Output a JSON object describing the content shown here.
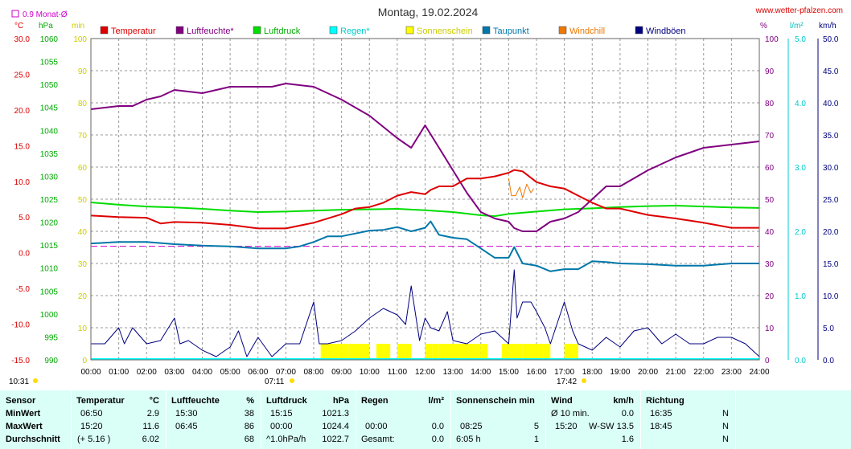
{
  "header": {
    "title": "Montag, 19.02.2024",
    "site": "www.wetter-pfalzen.com",
    "avg_label": "0.9 Monat-Ø",
    "time_start": "10:31",
    "sunrise_time": "07:11",
    "sunset_time": "17:42"
  },
  "units": {
    "temp": "°C",
    "pressure": "hPa",
    "sun": "min",
    "humidity": "%",
    "rain": "l/m²",
    "wind": "km/h"
  },
  "colors": {
    "temperature": "#dd0000",
    "humidity": "#800080",
    "pressure": "#00dd00",
    "rain": "#00dddd",
    "sunshine": "#ffff00",
    "dewpoint": "#0077aa",
    "windchill": "#ee7700",
    "gusts": "#000080",
    "summary_bg": "#d9fff7"
  },
  "legend": [
    {
      "label": "Temperatur",
      "color": "#dd0000",
      "text_color": "#dd0000"
    },
    {
      "label": "Luftfeuchte*",
      "color": "#800080",
      "text_color": "#800080"
    },
    {
      "label": "Luftdruck",
      "color": "#00dd00",
      "text_color": "#00aa00"
    },
    {
      "label": "Regen*",
      "color": "#00ffff",
      "text_color": "#00cccc"
    },
    {
      "label": "Sonnenschein",
      "color": "#ffff00",
      "text_color": "#cccc00"
    },
    {
      "label": "Taupunkt",
      "color": "#0077aa",
      "text_color": "#0077aa"
    },
    {
      "label": "Windchill",
      "color": "#ee7700",
      "text_color": "#ee7700"
    },
    {
      "label": "Windböen",
      "color": "#000080",
      "text_color": "#000080"
    }
  ],
  "axes": {
    "temp_ticks": [
      "30.0",
      "25.0",
      "20.0",
      "15.0",
      "10.0",
      "5.0",
      "0.0",
      "-5.0",
      "-10.0",
      "-15.0"
    ],
    "pressure_ticks": [
      "1060",
      "1055",
      "1050",
      "1045",
      "1040",
      "1035",
      "1030",
      "1025",
      "1020",
      "1015",
      "1010",
      "1005",
      "1000",
      "995",
      "990"
    ],
    "sun_ticks": [
      "100",
      "90",
      "80",
      "70",
      "60",
      "50",
      "40",
      "30",
      "20",
      "10",
      "0"
    ],
    "humidity_ticks": [
      "100",
      "90",
      "80",
      "70",
      "60",
      "50",
      "40",
      "30",
      "20",
      "10",
      "0"
    ],
    "rain_ticks": [
      "5.0",
      "4.0",
      "3.0",
      "2.0",
      "1.0",
      "0.0"
    ],
    "wind_ticks": [
      "50.0",
      "45.0",
      "40.0",
      "35.0",
      "30.0",
      "25.0",
      "20.0",
      "15.0",
      "10.0",
      "5.0",
      "0.0"
    ],
    "time_ticks": [
      "00:00",
      "01:00",
      "02:00",
      "03:00",
      "04:00",
      "05:00",
      "06:00",
      "07:00",
      "08:00",
      "09:00",
      "10:00",
      "11:00",
      "12:00",
      "13:00",
      "14:00",
      "15:00",
      "16:00",
      "17:00",
      "18:00",
      "19:00",
      "20:00",
      "21:00",
      "22:00",
      "23:00",
      "24:00"
    ]
  },
  "chart_data": {
    "type": "line",
    "title": "Montag, 19.02.2024",
    "x_unit": "hours",
    "xlim": [
      0,
      24
    ],
    "temp_ylim": [
      -15,
      30
    ],
    "humidity_ylim": [
      0,
      100
    ],
    "pressure_ylim": [
      990,
      1060
    ],
    "wind_ylim": [
      0,
      50
    ],
    "rain_ylim": [
      0,
      5
    ],
    "sun_ylim": [
      0,
      100
    ],
    "grid": true,
    "monthly_avg_temp": 0.9,
    "series": [
      {
        "name": "Temperatur",
        "axis": "temp",
        "x": [
          0,
          1,
          2,
          2.5,
          3,
          4,
          5,
          6,
          7,
          8,
          9,
          9.5,
          10,
          10.5,
          11,
          11.5,
          12,
          12.2,
          12.5,
          13,
          13.5,
          14,
          14.5,
          15,
          15.2,
          15.5,
          16,
          16.5,
          17,
          17.5,
          18,
          18.5,
          19,
          20,
          21,
          22,
          23,
          24
        ],
        "y": [
          5.2,
          5.0,
          4.9,
          4.1,
          4.3,
          4.2,
          3.9,
          3.4,
          3.4,
          4.2,
          5.4,
          6.2,
          6.4,
          7.0,
          8.0,
          8.5,
          8.2,
          8.8,
          9.3,
          9.3,
          10.4,
          10.4,
          10.7,
          11.2,
          11.6,
          11.4,
          9.9,
          9.3,
          9.0,
          8.0,
          7.0,
          6.2,
          6.2,
          5.3,
          4.8,
          4.2,
          3.5,
          3.5
        ]
      },
      {
        "name": "Luftfeuchte*",
        "axis": "humidity",
        "x": [
          0,
          1,
          1.5,
          2,
          2.5,
          3,
          4,
          5,
          6,
          6.5,
          7,
          8,
          8.5,
          9,
          10,
          11,
          11.5,
          12,
          12.5,
          13,
          13.5,
          14,
          14.5,
          15,
          15.2,
          15.5,
          16,
          16.5,
          17,
          17.5,
          18,
          18.5,
          19,
          20,
          21,
          22,
          23,
          24
        ],
        "y": [
          78,
          79,
          79,
          81,
          82,
          84,
          83,
          85,
          85,
          85,
          86,
          85,
          83,
          81,
          76,
          69,
          66,
          73,
          66,
          59,
          52,
          46,
          44,
          43,
          41,
          40,
          40,
          43,
          44,
          46,
          50,
          54,
          54,
          59,
          63,
          66,
          67,
          68
        ]
      },
      {
        "name": "Luftdruck",
        "axis": "pressure",
        "x": [
          0,
          1,
          2,
          3,
          4,
          5,
          6,
          7,
          8,
          9,
          10,
          11,
          12,
          13,
          14,
          14.5,
          15,
          16,
          17,
          18,
          19,
          20,
          21,
          22,
          23,
          24
        ],
        "y": [
          1024.3,
          1023.8,
          1023.4,
          1023.2,
          1022.9,
          1022.5,
          1022.2,
          1022.3,
          1022.5,
          1022.7,
          1022.8,
          1022.9,
          1022.6,
          1022.2,
          1021.5,
          1021.3,
          1021.8,
          1022.3,
          1022.8,
          1023.0,
          1023.3,
          1023.5,
          1023.6,
          1023.4,
          1023.2,
          1023.1
        ]
      },
      {
        "name": "Taupunkt",
        "axis": "temp",
        "x": [
          0,
          1,
          2,
          3,
          4,
          5,
          6,
          7,
          7.5,
          8,
          8.5,
          9,
          9.5,
          10,
          10.5,
          11,
          11.5,
          12,
          12.2,
          12.5,
          13,
          13.5,
          14,
          14.5,
          15,
          15.2,
          15.5,
          16,
          16.5,
          17,
          17.5,
          18,
          18.5,
          19,
          20,
          21,
          22,
          23,
          24
        ],
        "y": [
          1.3,
          1.5,
          1.5,
          1.2,
          1.0,
          0.9,
          0.6,
          0.6,
          0.9,
          1.5,
          2.3,
          2.3,
          2.7,
          3.1,
          3.2,
          3.6,
          3.0,
          3.5,
          4.4,
          2.5,
          2.1,
          1.9,
          0.6,
          -0.7,
          -0.7,
          0.8,
          -1.5,
          -1.8,
          -2.6,
          -2.3,
          -2.3,
          -1.2,
          -1.3,
          -1.5,
          -1.6,
          -1.8,
          -1.8,
          -1.5,
          -1.5
        ]
      },
      {
        "name": "Windchill",
        "axis": "temp",
        "x": [
          15.0,
          15.1,
          15.25,
          15.4,
          15.5,
          15.65,
          15.8,
          15.9
        ],
        "y": [
          10.4,
          8.0,
          8.0,
          9.2,
          7.7,
          9.6,
          8.4,
          9.0
        ]
      },
      {
        "name": "Windböen",
        "axis": "wind",
        "x": [
          0,
          0.5,
          1,
          1.2,
          1.5,
          2,
          2.5,
          3,
          3.2,
          3.5,
          4,
          4.5,
          5,
          5.3,
          5.6,
          6,
          6.5,
          7,
          7.5,
          8,
          8.2,
          8.5,
          9,
          9.5,
          10,
          10.5,
          11,
          11.3,
          11.5,
          11.8,
          12,
          12.2,
          12.5,
          12.8,
          13,
          13.5,
          14,
          14.5,
          15,
          15.2,
          15.3,
          15.5,
          15.8,
          16,
          16.3,
          16.5,
          17,
          17.3,
          17.5,
          18,
          18.5,
          19,
          19.5,
          20,
          20.5,
          21,
          21.5,
          22,
          22.5,
          23,
          23.5,
          24
        ],
        "y": [
          2.5,
          2.5,
          5.0,
          2.5,
          5.0,
          2.5,
          3.0,
          6.5,
          2.5,
          3.0,
          1.5,
          0.5,
          2.0,
          4.5,
          0.5,
          3.5,
          0.5,
          2.5,
          2.5,
          9.0,
          2.5,
          2.5,
          3.0,
          4.5,
          6.5,
          8.0,
          7.0,
          5.5,
          11.5,
          3.0,
          6.5,
          5.0,
          4.5,
          7.5,
          3.0,
          2.5,
          4.0,
          4.5,
          2.5,
          14.0,
          6.5,
          9.0,
          9.0,
          7.5,
          5.0,
          2.5,
          9.0,
          4.5,
          2.5,
          1.5,
          3.5,
          2.0,
          4.5,
          5.0,
          2.5,
          4.0,
          2.5,
          2.5,
          3.5,
          3.5,
          2.5,
          0.5
        ]
      },
      {
        "name": "Sonnenschein",
        "axis": "sun",
        "type": "bar",
        "x": [
          8.25,
          8.5,
          8.75,
          9.0,
          9.25,
          9.5,
          9.75,
          10.0,
          10.25,
          10.5,
          10.75,
          11.0,
          11.25,
          11.5,
          12.0,
          12.25,
          12.5,
          12.75,
          13.0,
          13.25,
          13.5,
          13.75,
          14.0,
          14.25,
          14.5,
          14.75,
          15.0,
          15.25,
          15.5,
          15.75,
          16.0,
          16.25,
          16.5,
          16.75,
          17.0,
          17.25,
          17.5
        ],
        "y": [
          5,
          5,
          5,
          5,
          5,
          5,
          5,
          0,
          5,
          5,
          0,
          5,
          5,
          0,
          5,
          5,
          5,
          5,
          5,
          5,
          5,
          5,
          5,
          0,
          0,
          5,
          5,
          5,
          5,
          5,
          5,
          5,
          0,
          0,
          5,
          5,
          0
        ]
      }
    ]
  },
  "summary": {
    "sensor": {
      "header": "Sensor",
      "rows": [
        "MinWert",
        "MaxWert",
        "Durchschnitt"
      ]
    },
    "temperature": {
      "header": "Temperatur",
      "unit": "°C",
      "rows": [
        [
          "06:50",
          "2.9"
        ],
        [
          "15:20",
          "11.6"
        ],
        [
          "(+ 5.16 )",
          "6.02"
        ]
      ]
    },
    "humidity": {
      "header": "Luftfeuchte",
      "unit": "%",
      "rows": [
        [
          "15:30",
          "38"
        ],
        [
          "06:45",
          "86"
        ],
        [
          "",
          "68"
        ]
      ]
    },
    "pressure": {
      "header": "Luftdruck",
      "unit": "hPa",
      "rows": [
        [
          "15:15",
          "1021.3"
        ],
        [
          "00:00",
          "1024.4"
        ],
        [
          "^1.0hPa/h",
          "1022.7"
        ]
      ]
    },
    "rain": {
      "header": "Regen",
      "unit": "l/m²",
      "rows": [
        [
          "",
          ""
        ],
        [
          "00:00",
          "0.0"
        ],
        [
          "Gesamt:",
          "0.0"
        ]
      ]
    },
    "sunshine": {
      "header": "Sonnenschein min",
      "unit": "",
      "rows": [
        [
          "",
          ""
        ],
        [
          "08:25",
          "5"
        ],
        [
          "6:05 h",
          "1"
        ]
      ]
    },
    "wind": {
      "header": "Wind",
      "unit": "km/h",
      "rows": [
        [
          "Ø 10 min.",
          "0.0"
        ],
        [
          "15:20",
          "W-SW 13.5"
        ],
        [
          "",
          "1.6"
        ]
      ]
    },
    "direction": {
      "header": "Richtung",
      "unit": "",
      "rows": [
        [
          "16:35",
          "N"
        ],
        [
          "18:45",
          "N"
        ],
        [
          "",
          "N"
        ]
      ]
    }
  }
}
